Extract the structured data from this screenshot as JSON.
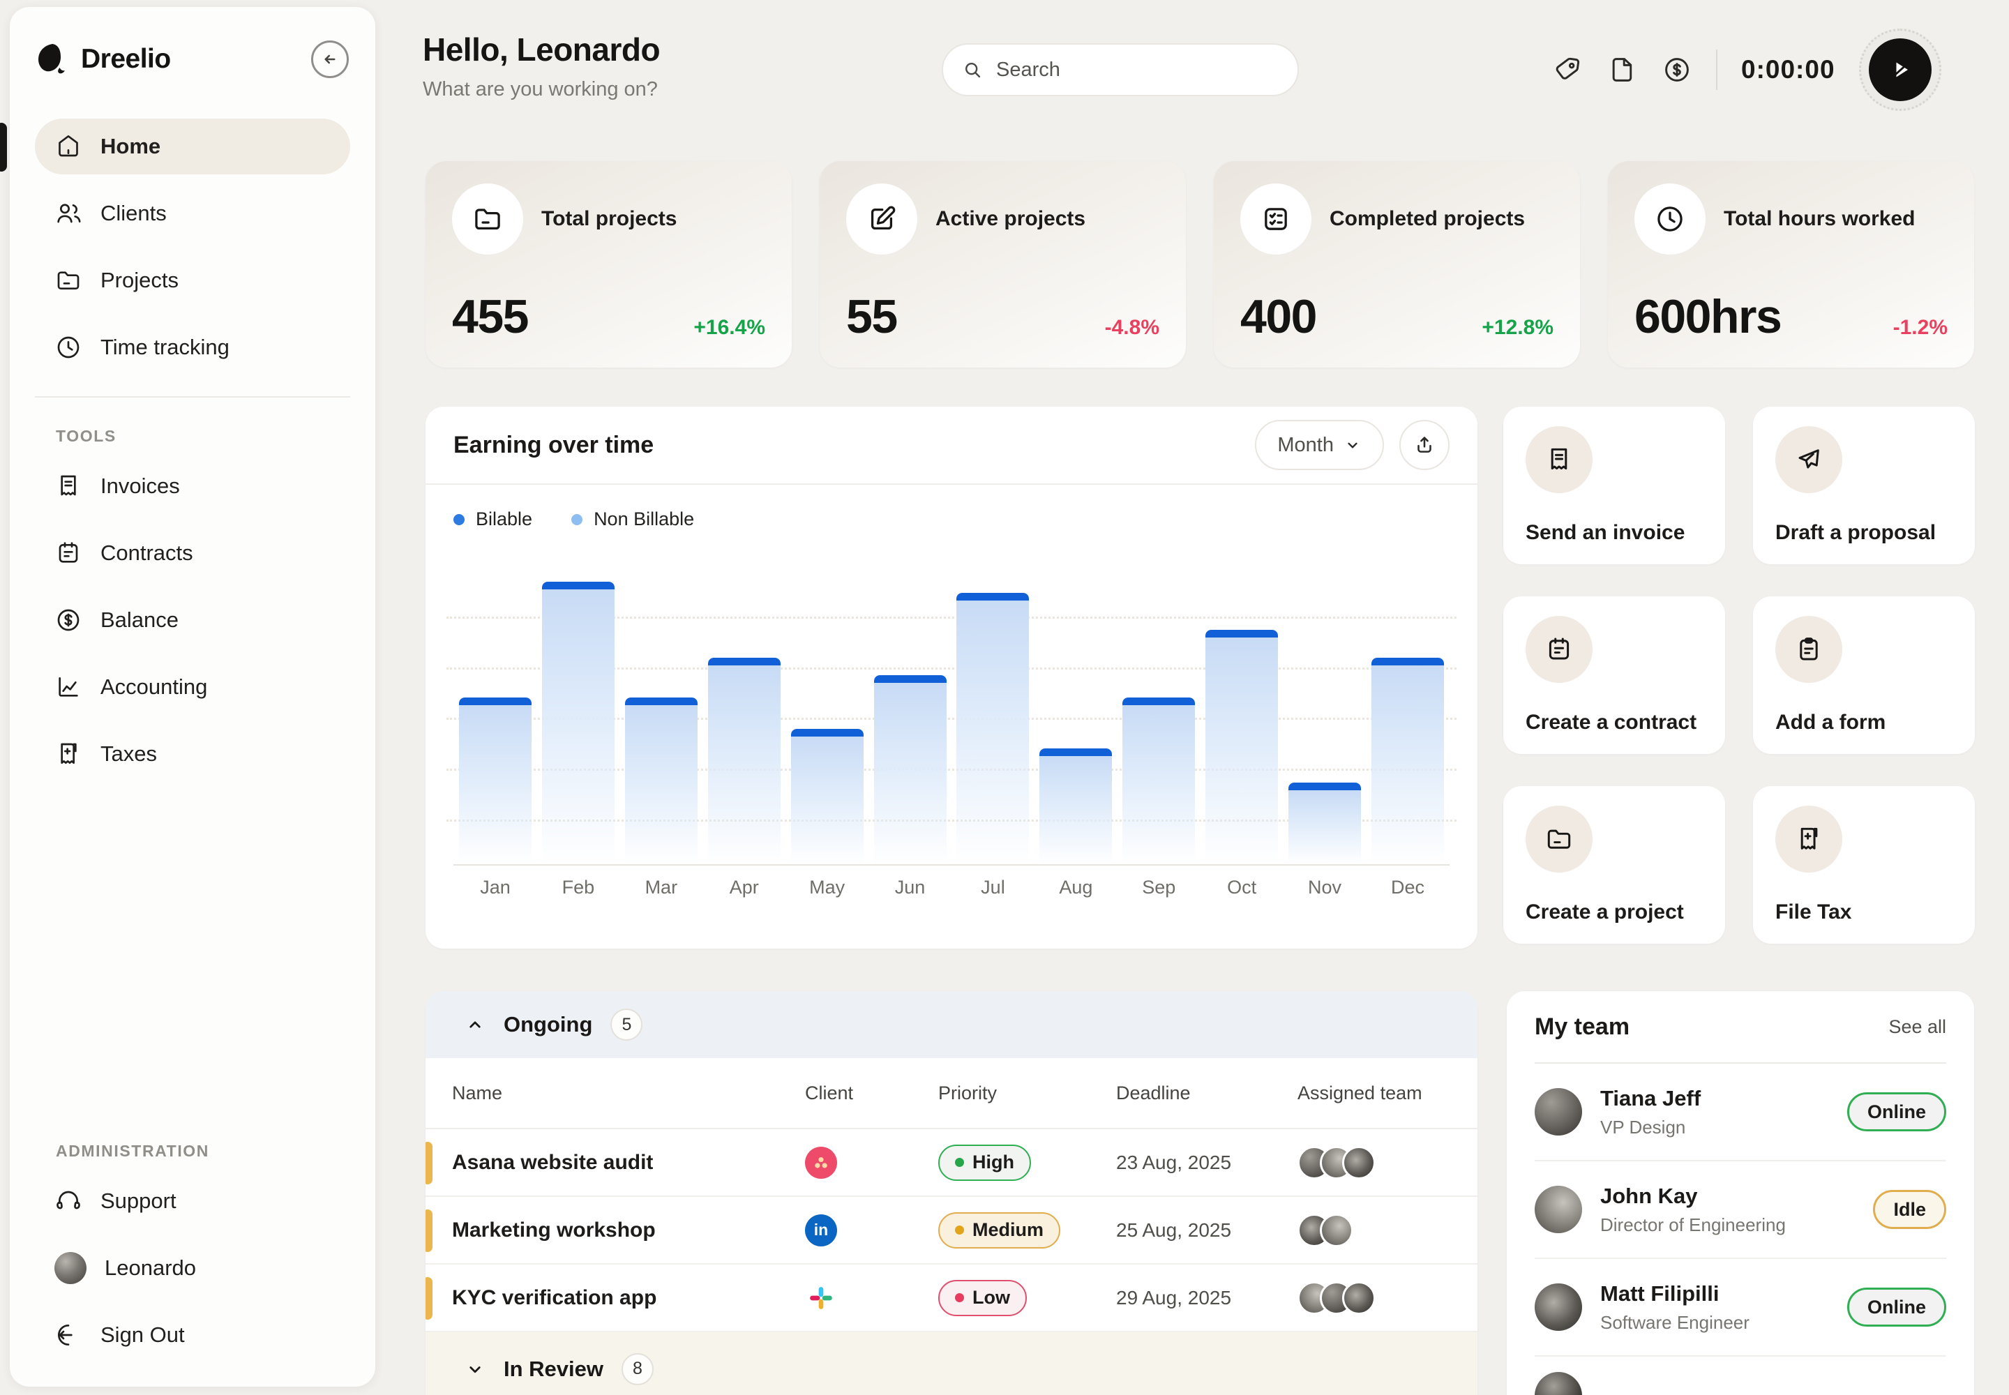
{
  "brand": {
    "name": "Dreelio"
  },
  "sidebar": {
    "nav": [
      {
        "label": "Home",
        "icon": "home-icon",
        "active": true
      },
      {
        "label": "Clients",
        "icon": "clients-icon",
        "active": false
      },
      {
        "label": "Projects",
        "icon": "projects-folder-icon",
        "active": false
      },
      {
        "label": "Time tracking",
        "icon": "time-tracking-clock-icon",
        "active": false
      }
    ],
    "tools_label": "TOOLS",
    "tools": [
      {
        "label": "Invoices",
        "icon": "invoice-receipt-icon"
      },
      {
        "label": "Contracts",
        "icon": "contract-note-icon"
      },
      {
        "label": "Balance",
        "icon": "dollar-circle-icon"
      },
      {
        "label": "Accounting",
        "icon": "line-chart-icon"
      },
      {
        "label": "Taxes",
        "icon": "tax-receipt-icon"
      }
    ],
    "admin_label": "ADMINISTRATION",
    "admin": [
      {
        "label": "Support",
        "icon": "headphones-icon"
      },
      {
        "label": "Leonardo",
        "icon": "user-avatar"
      },
      {
        "label": "Sign Out",
        "icon": "sign-out-icon"
      }
    ]
  },
  "header": {
    "greeting": "Hello, Leonardo",
    "subtitle": "What are you working on?",
    "search_placeholder": "Search",
    "timer": "0:00:00"
  },
  "stats": [
    {
      "label": "Total projects",
      "value": "455",
      "delta": "+16.4%",
      "trend": "up",
      "icon": "folder-icon"
    },
    {
      "label": "Active projects",
      "value": "55",
      "delta": "-4.8%",
      "trend": "down",
      "icon": "edit-pencil-icon"
    },
    {
      "label": "Completed projects",
      "value": "400",
      "delta": "+12.8%",
      "trend": "up",
      "icon": "checklist-icon"
    },
    {
      "label": "Total hours worked",
      "value": "600hrs",
      "delta": "-1.2%",
      "trend": "down",
      "icon": "clock-icon"
    }
  ],
  "chart": {
    "title": "Earning over time",
    "period": "Month",
    "legend": [
      {
        "label": "Bilable",
        "color": "#2d7be0"
      },
      {
        "label": "Non Billable",
        "color": "#8ebdf2"
      }
    ]
  },
  "chart_data": {
    "type": "bar",
    "title": "Earning over time",
    "categories": [
      "Jan",
      "Feb",
      "Mar",
      "Apr",
      "May",
      "Jun",
      "Jul",
      "Aug",
      "Sep",
      "Oct",
      "Nov",
      "Dec"
    ],
    "values": [
      59,
      100,
      59,
      73,
      48,
      67,
      96,
      41,
      59,
      83,
      29,
      73
    ],
    "unit": "relative bar height, % of max (no y-axis tick labels shown)",
    "ylim": [
      0,
      100
    ],
    "xlabel": "",
    "ylabel": "",
    "grid": "dotted horizontal gridlines",
    "legend_position": "top-left",
    "bar_cap_color": "#1160d8",
    "bar_fill": "blue gradient fading to white"
  },
  "actions": [
    {
      "label": "Send an invoice",
      "icon": "invoice-receipt-icon"
    },
    {
      "label": "Draft a proposal",
      "icon": "paper-plane-icon"
    },
    {
      "label": "Create a contract",
      "icon": "contract-note-icon"
    },
    {
      "label": "Add a form",
      "icon": "form-clipboard-icon"
    },
    {
      "label": "Create a project",
      "icon": "project-folder-icon"
    },
    {
      "label": "File Tax",
      "icon": "tax-receipt-icon"
    }
  ],
  "ongoing": {
    "title": "Ongoing",
    "count": "5",
    "columns": [
      "Name",
      "Client",
      "Priority",
      "Deadline",
      "Assigned team"
    ],
    "rows": [
      {
        "name": "Asana website audit",
        "client": "Asana",
        "priority": "High",
        "deadline": "23 Aug, 2025",
        "team_size": 3
      },
      {
        "name": "Marketing workshop",
        "client": "LinkedIn",
        "priority": "Medium",
        "deadline": "25 Aug, 2025",
        "team_size": 2
      },
      {
        "name": "KYC verification app",
        "client": "Slack",
        "priority": "Low",
        "deadline": "29 Aug, 2025",
        "team_size": 3
      }
    ],
    "footer": {
      "title": "In Review",
      "count": "8"
    }
  },
  "team": {
    "title": "My team",
    "see_all": "See all",
    "members": [
      {
        "name": "Tiana Jeff",
        "role": "VP Design",
        "status": "Online"
      },
      {
        "name": "John Kay",
        "role": "Director of Engineering",
        "status": "Idle"
      },
      {
        "name": "Matt Filipilli",
        "role": "Software Engineer",
        "status": "Online"
      }
    ]
  },
  "colors": {
    "positive": "#16a34a",
    "negative": "#e8405f",
    "row_accent": "#ecb64f",
    "priority_high": "#2fae53",
    "priority_medium": "#e0ae4e",
    "priority_low": "#e04f6e",
    "bar_cap": "#1160d8",
    "linkedin_blue": "#0a66c2",
    "asana_pink": "#ee4a6a"
  }
}
